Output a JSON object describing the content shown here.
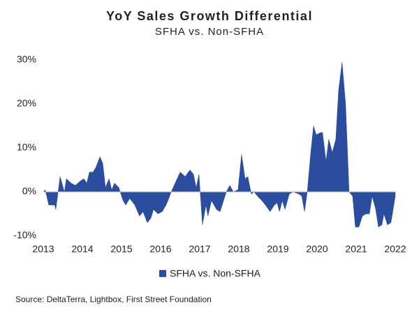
{
  "chart_data": {
    "type": "area",
    "title": "YoY Sales Growth Differential",
    "subtitle": "SFHA vs. Non-SFHA",
    "source": "Source: DeltaTerra, Lightbox, First Street Foundation",
    "x": [
      2013.0,
      2013.05,
      2013.14,
      2013.29,
      2013.32,
      2013.43,
      2013.54,
      2013.59,
      2013.71,
      2013.82,
      2013.95,
      2014.04,
      2014.11,
      2014.18,
      2014.27,
      2014.34,
      2014.45,
      2014.52,
      2014.59,
      2014.68,
      2014.75,
      2014.82,
      2014.93,
      2015.04,
      2015.11,
      2015.21,
      2015.34,
      2015.46,
      2015.55,
      2015.66,
      2015.75,
      2015.82,
      2015.93,
      2016.04,
      2016.14,
      2016.21,
      2016.27,
      2016.5,
      2016.63,
      2016.75,
      2016.84,
      2016.91,
      2016.98,
      2017.07,
      2017.16,
      2017.21,
      2017.3,
      2017.43,
      2017.52,
      2017.61,
      2017.68,
      2017.77,
      2017.86,
      2017.98,
      2018.07,
      2018.16,
      2018.23,
      2018.32,
      2018.39,
      2018.48,
      2018.59,
      2018.68,
      2018.8,
      2018.91,
      2018.98,
      2019.04,
      2019.11,
      2019.18,
      2019.29,
      2019.39,
      2019.54,
      2019.61,
      2019.68,
      2019.75,
      2019.84,
      2019.91,
      2019.98,
      2020.09,
      2020.14,
      2020.23,
      2020.3,
      2020.39,
      2020.48,
      2020.55,
      2020.64,
      2020.73,
      2020.82,
      2020.91,
      2020.98,
      2021.07,
      2021.16,
      2021.25,
      2021.34,
      2021.41,
      2021.5,
      2021.57,
      2021.66,
      2021.71,
      2021.8,
      2021.89,
      2022.0
    ],
    "series": [
      {
        "name": "SFHA vs. Non-SFHA",
        "color": "#2b4da0",
        "values": [
          0,
          0.5,
          -3,
          -3,
          -4,
          3.5,
          0,
          3,
          2,
          1.5,
          2.5,
          3,
          2,
          4.5,
          4.5,
          5.5,
          8,
          6.5,
          1,
          3,
          0.5,
          2,
          1,
          -2,
          -3,
          -1.5,
          -3,
          -5.5,
          -4.5,
          -7,
          -6,
          -4,
          -5,
          -4.5,
          -3,
          -1.5,
          0,
          4.5,
          3.5,
          5,
          4,
          1,
          4,
          -7.5,
          -3,
          -5.5,
          -2,
          -4,
          -4.5,
          -2,
          0,
          1.5,
          0,
          0.5,
          8.5,
          3,
          3.5,
          -0.5,
          0,
          -1,
          -2,
          -3,
          -4.5,
          -3,
          -2.5,
          -4.5,
          -2,
          -4,
          -0.5,
          0,
          -0.5,
          -1,
          -4.5,
          0,
          9,
          15,
          13,
          13.5,
          13.5,
          7,
          12,
          9,
          12,
          23,
          29.5,
          20,
          0,
          -1,
          -8,
          -8,
          -5.5,
          -5,
          -5,
          -1,
          -4,
          -8,
          -7.5,
          -5,
          -7.5,
          -7,
          -1
        ]
      }
    ],
    "xlim": [
      2013,
      2022
    ],
    "xticks": [
      2013,
      2014,
      2015,
      2016,
      2017,
      2018,
      2019,
      2020,
      2021,
      2022
    ],
    "ylim": [
      -10,
      30
    ],
    "yticks": [
      {
        "value": -10,
        "label": "-10%"
      },
      {
        "value": 0,
        "label": "0%"
      },
      {
        "value": 10,
        "label": "10%"
      },
      {
        "value": 20,
        "label": "20%"
      },
      {
        "value": 30,
        "label": "30%"
      }
    ],
    "grid": false,
    "legend": "bottom"
  }
}
